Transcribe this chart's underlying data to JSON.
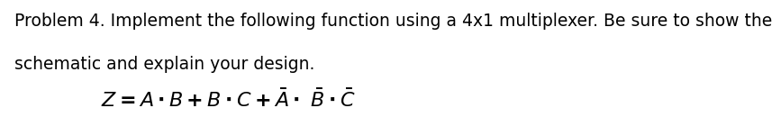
{
  "line1": "Problem 4. Implement the following function using a 4x1 multiplexer. Be sure to show the",
  "line2": "schematic and explain your design.",
  "background_color": "#ffffff",
  "text_color": "#000000",
  "text_fontsize": 13.5,
  "formula_fontsize": 16,
  "fig_width": 7.54,
  "fig_height": 1.33
}
